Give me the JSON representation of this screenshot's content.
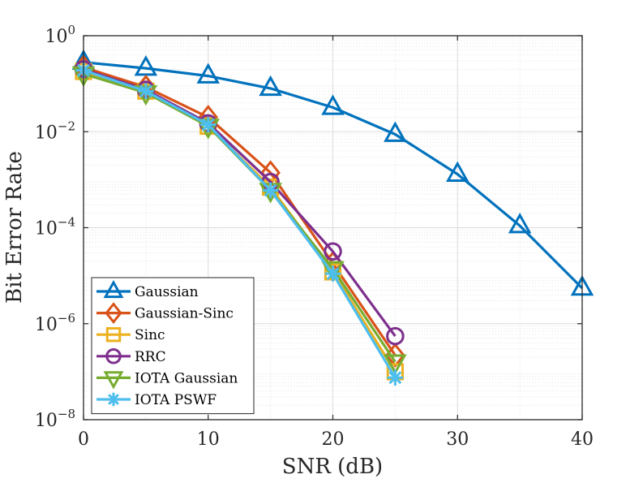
{
  "chart_data": {
    "type": "line",
    "title": "",
    "xlabel": "SNR (dB)",
    "ylabel": "Bit Error Rate",
    "xlim": [
      0,
      40
    ],
    "ylim": [
      1e-08,
      1
    ],
    "yscale": "log",
    "grid": true,
    "minor_grid": true,
    "legend_position": "bottom-left",
    "x_ticks": [
      0,
      10,
      20,
      30,
      40
    ],
    "x_tick_labels": [
      "0",
      "10",
      "20",
      "30",
      "40"
    ],
    "y_ticks": [
      {
        "value": 1,
        "base": "10",
        "exp": "0"
      },
      {
        "value": 0.01,
        "base": "10",
        "exp": "−2"
      },
      {
        "value": 0.0001,
        "base": "10",
        "exp": "−4"
      },
      {
        "value": 1e-06,
        "base": "10",
        "exp": "−6"
      },
      {
        "value": 1e-08,
        "base": "10",
        "exp": "−8"
      }
    ],
    "series": [
      {
        "name": "Gaussian",
        "color": "#0072BD",
        "marker": "triangle-up",
        "x": [
          0,
          5,
          10,
          15,
          20,
          25,
          30,
          35,
          40
        ],
        "y": [
          0.28,
          0.21,
          0.145,
          0.08,
          0.032,
          0.0088,
          0.0013,
          0.00011,
          5.5e-06
        ]
      },
      {
        "name": "Gaussian-Sinc",
        "color": "#D95319",
        "marker": "diamond",
        "x": [
          0,
          5,
          10,
          15,
          20,
          25
        ],
        "y": [
          0.22,
          0.085,
          0.02,
          0.0014,
          1.8e-05,
          2.2e-07
        ]
      },
      {
        "name": "Sinc",
        "color": "#EDB120",
        "marker": "square",
        "x": [
          0,
          5,
          10,
          15,
          20,
          25
        ],
        "y": [
          0.18,
          0.07,
          0.013,
          0.0007,
          1.2e-05,
          1e-07
        ]
      },
      {
        "name": "RRC",
        "color": "#7E2F8E",
        "marker": "circle",
        "x": [
          0,
          5,
          10,
          15,
          20,
          25
        ],
        "y": [
          0.2,
          0.075,
          0.015,
          0.0009,
          3.2e-05,
          5.5e-07
        ]
      },
      {
        "name": "IOTA Gaussian",
        "color": "#77AC30",
        "marker": "triangle-down",
        "x": [
          0,
          5,
          10,
          15,
          20,
          25
        ],
        "y": [
          0.16,
          0.065,
          0.013,
          0.0006,
          1.4e-05,
          1.6e-07
        ]
      },
      {
        "name": "IOTA PSWF",
        "color": "#4DBEEE",
        "marker": "asterisk",
        "x": [
          0,
          5,
          10,
          15,
          20,
          25
        ],
        "y": [
          0.19,
          0.07,
          0.014,
          0.0006,
          1.1e-05,
          7.5e-08
        ]
      }
    ]
  }
}
